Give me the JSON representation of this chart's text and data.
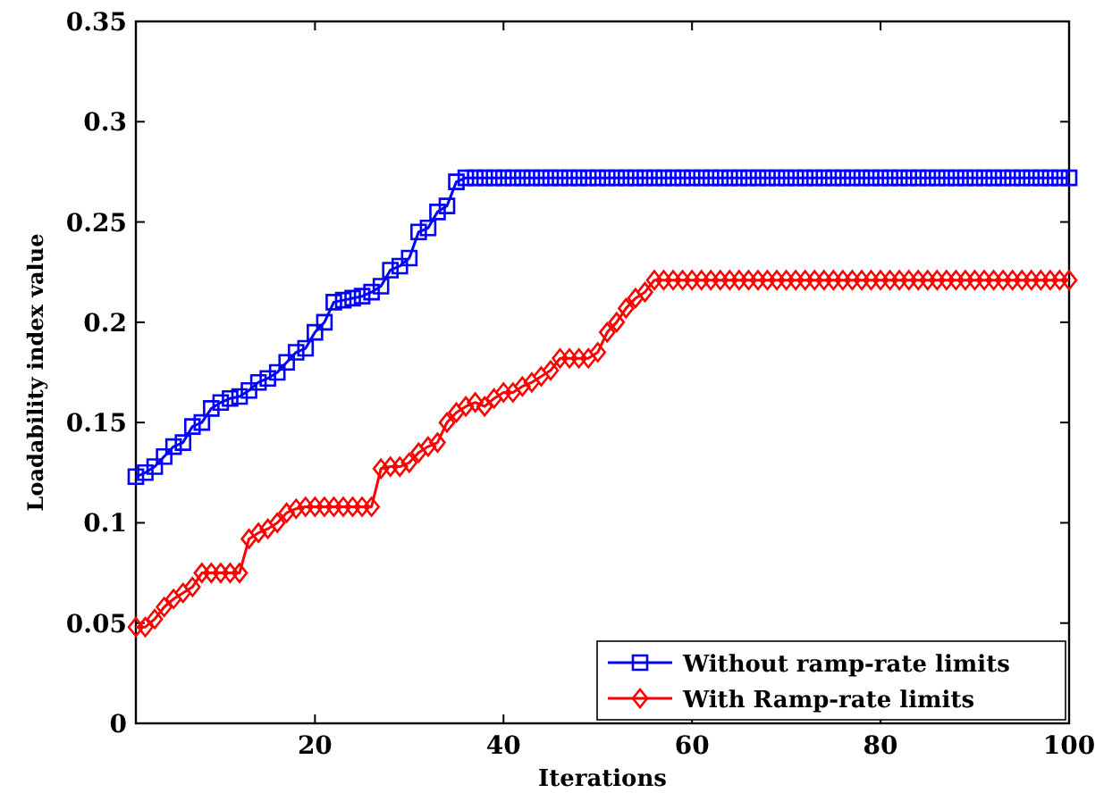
{
  "chart_data": {
    "type": "line",
    "xlabel": "Iterations",
    "ylabel": "Loadability index value",
    "x": [
      1,
      2,
      3,
      4,
      5,
      6,
      7,
      8,
      9,
      10,
      11,
      12,
      13,
      14,
      15,
      16,
      17,
      18,
      19,
      20,
      21,
      22,
      23,
      24,
      25,
      26,
      27,
      28,
      29,
      30,
      31,
      32,
      33,
      34,
      35,
      36,
      37,
      38,
      39,
      40,
      41,
      42,
      43,
      44,
      45,
      46,
      47,
      48,
      49,
      50,
      51,
      52,
      53,
      54,
      55,
      56,
      57,
      58,
      59,
      60,
      61,
      62,
      63,
      64,
      65,
      66,
      67,
      68,
      69,
      70,
      71,
      72,
      73,
      74,
      75,
      76,
      77,
      78,
      79,
      80,
      81,
      82,
      83,
      84,
      85,
      86,
      87,
      88,
      89,
      90,
      91,
      92,
      93,
      94,
      95,
      96,
      97,
      98,
      99,
      100
    ],
    "xlim": [
      1,
      100
    ],
    "xticks": [
      20,
      40,
      60,
      80,
      100
    ],
    "ylim": [
      0,
      0.35
    ],
    "yticks": [
      0,
      0.05,
      0.1,
      0.15,
      0.2,
      0.25,
      0.3,
      0.35
    ],
    "legend": "bottom right",
    "grid": false,
    "series": [
      {
        "name": "Without ramp-rate limits",
        "color": "#0000ff",
        "marker": "square",
        "values": [
          0.123,
          0.125,
          0.128,
          0.133,
          0.138,
          0.14,
          0.148,
          0.15,
          0.157,
          0.16,
          0.162,
          0.163,
          0.166,
          0.17,
          0.172,
          0.175,
          0.18,
          0.185,
          0.187,
          0.195,
          0.2,
          0.21,
          0.211,
          0.212,
          0.213,
          0.215,
          0.218,
          0.226,
          0.228,
          0.232,
          0.245,
          0.247,
          0.255,
          0.258,
          0.27,
          0.272,
          0.272,
          0.272,
          0.272,
          0.272,
          0.272,
          0.272,
          0.272,
          0.272,
          0.272,
          0.272,
          0.272,
          0.272,
          0.272,
          0.272,
          0.272,
          0.272,
          0.272,
          0.272,
          0.272,
          0.272,
          0.272,
          0.272,
          0.272,
          0.272,
          0.272,
          0.272,
          0.272,
          0.272,
          0.272,
          0.272,
          0.272,
          0.272,
          0.272,
          0.272,
          0.272,
          0.272,
          0.272,
          0.272,
          0.272,
          0.272,
          0.272,
          0.272,
          0.272,
          0.272,
          0.272,
          0.272,
          0.272,
          0.272,
          0.272,
          0.272,
          0.272,
          0.272,
          0.272,
          0.272,
          0.272,
          0.272,
          0.272,
          0.272,
          0.272,
          0.272,
          0.272,
          0.272,
          0.272,
          0.272
        ]
      },
      {
        "name": "With Ramp-rate limits",
        "color": "#ff0000",
        "marker": "diamond",
        "values": [
          0.048,
          0.048,
          0.052,
          0.058,
          0.062,
          0.065,
          0.068,
          0.075,
          0.075,
          0.075,
          0.075,
          0.075,
          0.092,
          0.095,
          0.097,
          0.1,
          0.105,
          0.107,
          0.108,
          0.108,
          0.108,
          0.108,
          0.108,
          0.108,
          0.108,
          0.108,
          0.127,
          0.128,
          0.128,
          0.13,
          0.135,
          0.138,
          0.14,
          0.15,
          0.155,
          0.158,
          0.16,
          0.158,
          0.162,
          0.165,
          0.165,
          0.168,
          0.17,
          0.173,
          0.176,
          0.182,
          0.182,
          0.182,
          0.182,
          0.185,
          0.195,
          0.2,
          0.207,
          0.212,
          0.215,
          0.221,
          0.221,
          0.221,
          0.221,
          0.221,
          0.221,
          0.221,
          0.221,
          0.221,
          0.221,
          0.221,
          0.221,
          0.221,
          0.221,
          0.221,
          0.221,
          0.221,
          0.221,
          0.221,
          0.221,
          0.221,
          0.221,
          0.221,
          0.221,
          0.221,
          0.221,
          0.221,
          0.221,
          0.221,
          0.221,
          0.221,
          0.221,
          0.221,
          0.221,
          0.221,
          0.221,
          0.221,
          0.221,
          0.221,
          0.221,
          0.221,
          0.221,
          0.221,
          0.221,
          0.221
        ]
      }
    ]
  }
}
